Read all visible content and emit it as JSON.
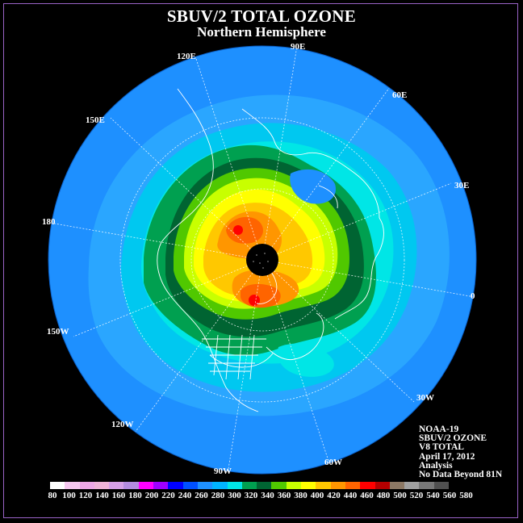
{
  "title": "SBUV/2 TOTAL OZONE",
  "subtitle": "Northern Hemisphere",
  "longitude_labels": [
    "90E",
    "60E",
    "30E",
    "0",
    "30W",
    "60W",
    "90W",
    "120W",
    "150W",
    "180",
    "150E",
    "120E"
  ],
  "info": {
    "satellite": "NOAA-19",
    "product": "SBUV/2 OZONE",
    "version": "V8 TOTAL",
    "date": "April 17, 2012",
    "type": "Analysis",
    "note": "No Data Beyond 81N"
  },
  "colorbar": {
    "ticks": [
      "80",
      "100",
      "120",
      "140",
      "160",
      "180",
      "200",
      "220",
      "240",
      "260",
      "280",
      "300",
      "320",
      "340",
      "360",
      "380",
      "400",
      "420",
      "440",
      "460",
      "480",
      "500",
      "520",
      "540",
      "560",
      "580"
    ],
    "colors": [
      "#ffffff",
      "#f6c8f0",
      "#eea8e6",
      "#f0b4d8",
      "#d7a0e8",
      "#b48be0",
      "#ff00ff",
      "#a000ff",
      "#0000ff",
      "#0050ff",
      "#1e90ff",
      "#00b4ff",
      "#00e6e6",
      "#00a050",
      "#006432",
      "#50c800",
      "#c8ff00",
      "#ffff00",
      "#ffc800",
      "#ff9600",
      "#ff6400",
      "#ff0000",
      "#b40000",
      "#8c7864",
      "#a0a0a0",
      "#787878",
      "#505050"
    ]
  },
  "map": {
    "ocean_color": "#1e90ff",
    "pole_color": "#000000",
    "levels": [
      "260",
      "280",
      "300",
      "320",
      "340",
      "360",
      "380",
      "400",
      "420",
      "440",
      "460"
    ]
  }
}
